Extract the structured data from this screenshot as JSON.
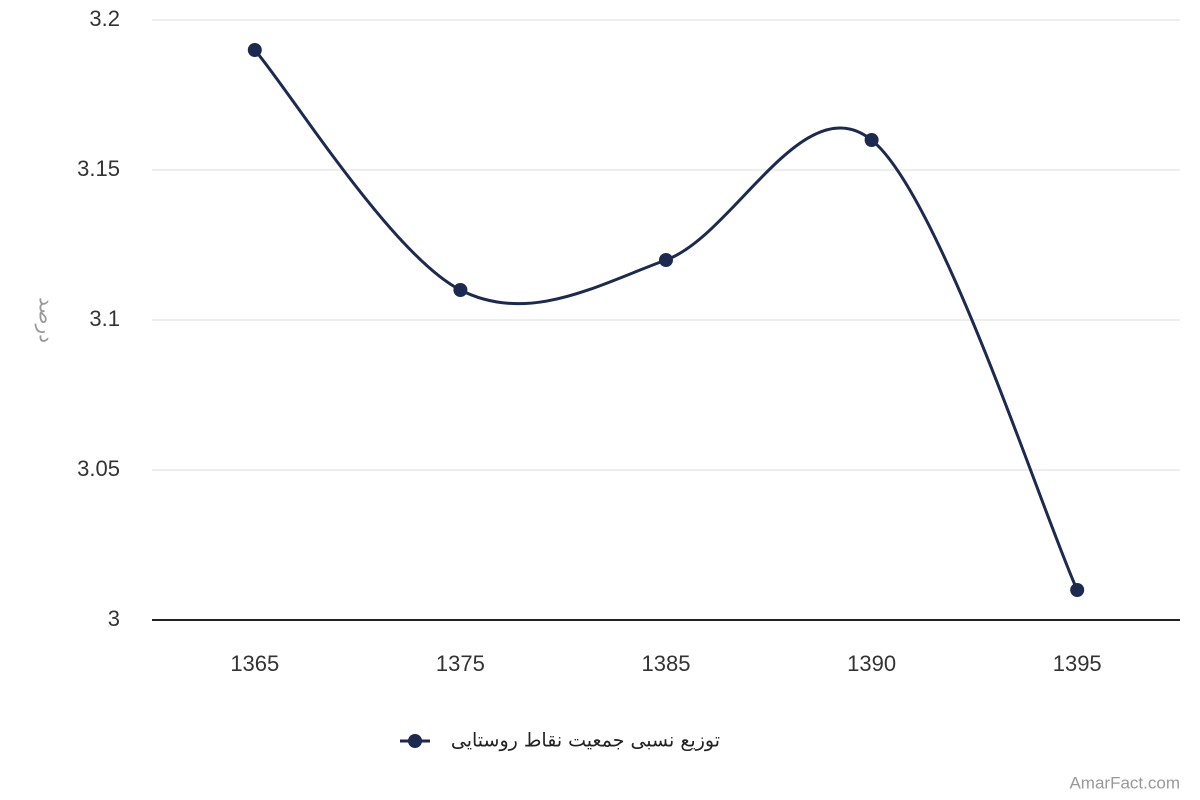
{
  "chart_data": {
    "type": "line",
    "y_label": "درصد",
    "categories": [
      "1365",
      "1375",
      "1385",
      "1390",
      "1395"
    ],
    "series": [
      {
        "name": "توزیع نسبی جمعیت نقاط روستایی",
        "color": "#1b2a4e",
        "values": [
          3.19,
          3.11,
          3.12,
          3.16,
          3.01
        ]
      }
    ],
    "ylim": [
      3,
      3.2
    ],
    "yticks": [
      3,
      3.05,
      3.1,
      3.15,
      3.2
    ],
    "grid": true,
    "watermark": "AmarFact.com"
  }
}
